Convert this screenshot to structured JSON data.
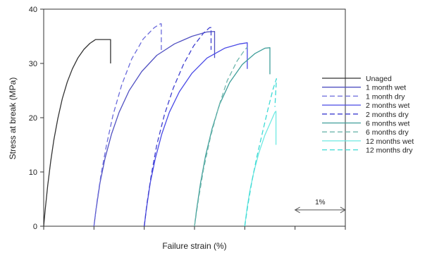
{
  "chart_data": {
    "type": "line",
    "xlabel": "Failure strain (%)",
    "ylabel": "Stress at break (MPa)",
    "ylim": [
      0,
      40
    ],
    "y_ticks": [
      0,
      10,
      20,
      30,
      40
    ],
    "x_tick_count": 7,
    "x_tick_labels": false,
    "grid": false,
    "legend_position": "right",
    "annotation": {
      "label": "1%",
      "from_x": 5.0,
      "to_x": 6.0,
      "y": 3.0
    },
    "series": [
      {
        "name": "Unaged",
        "color": "#333333",
        "dash": false,
        "points": [
          [
            0.0,
            0.0
          ],
          [
            0.03,
            3.0
          ],
          [
            0.08,
            7.5
          ],
          [
            0.14,
            12.0
          ],
          [
            0.2,
            15.8
          ],
          [
            0.28,
            19.8
          ],
          [
            0.37,
            23.5
          ],
          [
            0.47,
            26.6
          ],
          [
            0.57,
            29.0
          ],
          [
            0.68,
            31.0
          ],
          [
            0.8,
            32.6
          ],
          [
            0.92,
            33.7
          ],
          [
            1.0,
            34.2
          ],
          [
            1.03,
            34.4
          ],
          [
            1.33,
            34.4
          ],
          [
            1.33,
            30.0
          ]
        ]
      },
      {
        "name": "1 month wet",
        "color": "#5252c2",
        "dash": false,
        "points": [
          [
            1.0,
            0.0
          ],
          [
            1.04,
            3.0
          ],
          [
            1.12,
            8.0
          ],
          [
            1.22,
            12.5
          ],
          [
            1.35,
            17.0
          ],
          [
            1.5,
            21.0
          ],
          [
            1.7,
            25.0
          ],
          [
            1.95,
            28.5
          ],
          [
            2.25,
            31.5
          ],
          [
            2.6,
            33.6
          ],
          [
            2.95,
            35.0
          ],
          [
            3.25,
            35.8
          ],
          [
            3.4,
            35.9
          ],
          [
            3.4,
            31.0
          ]
        ]
      },
      {
        "name": "1 month dry",
        "color": "#6b6bdc",
        "dash": true,
        "points": [
          [
            1.0,
            0.0
          ],
          [
            1.06,
            4.5
          ],
          [
            1.14,
            9.5
          ],
          [
            1.25,
            15.0
          ],
          [
            1.38,
            20.5
          ],
          [
            1.55,
            26.0
          ],
          [
            1.75,
            30.8
          ],
          [
            1.98,
            34.5
          ],
          [
            2.2,
            36.6
          ],
          [
            2.32,
            37.3
          ],
          [
            2.34,
            37.3
          ],
          [
            2.34,
            32.0
          ]
        ]
      },
      {
        "name": "2 months wet",
        "color": "#4a4ae6",
        "dash": false,
        "points": [
          [
            2.0,
            0.0
          ],
          [
            2.04,
            3.0
          ],
          [
            2.12,
            8.0
          ],
          [
            2.22,
            12.5
          ],
          [
            2.35,
            17.0
          ],
          [
            2.5,
            21.0
          ],
          [
            2.7,
            24.8
          ],
          [
            2.95,
            28.2
          ],
          [
            3.25,
            31.0
          ],
          [
            3.6,
            32.8
          ],
          [
            3.9,
            33.6
          ],
          [
            4.05,
            33.8
          ],
          [
            4.05,
            29.0
          ]
        ]
      },
      {
        "name": "2 months dry",
        "color": "#3f3fd0",
        "dash": true,
        "points": [
          [
            2.0,
            0.0
          ],
          [
            2.06,
            4.5
          ],
          [
            2.14,
            9.5
          ],
          [
            2.25,
            15.0
          ],
          [
            2.4,
            20.5
          ],
          [
            2.58,
            25.5
          ],
          [
            2.78,
            29.8
          ],
          [
            2.98,
            33.2
          ],
          [
            3.18,
            35.6
          ],
          [
            3.3,
            36.6
          ],
          [
            3.33,
            36.6
          ],
          [
            3.33,
            32.5
          ]
        ]
      },
      {
        "name": "6 months wet",
        "color": "#3f9e9a",
        "dash": false,
        "points": [
          [
            3.0,
            0.0
          ],
          [
            3.04,
            3.0
          ],
          [
            3.12,
            8.0
          ],
          [
            3.22,
            13.0
          ],
          [
            3.35,
            18.0
          ],
          [
            3.5,
            22.5
          ],
          [
            3.7,
            26.5
          ],
          [
            3.95,
            29.8
          ],
          [
            4.2,
            31.8
          ],
          [
            4.4,
            32.8
          ],
          [
            4.5,
            32.9
          ],
          [
            4.5,
            28.0
          ]
        ]
      },
      {
        "name": "6 months dry",
        "color": "#6fb7ad",
        "dash": true,
        "points": [
          [
            3.0,
            0.0
          ],
          [
            3.08,
            5.0
          ],
          [
            3.18,
            10.5
          ],
          [
            3.32,
            16.5
          ],
          [
            3.48,
            22.0
          ],
          [
            3.65,
            26.8
          ],
          [
            3.85,
            30.5
          ],
          [
            4.0,
            32.5
          ],
          [
            4.05,
            33.0
          ]
        ]
      },
      {
        "name": "12 months wet",
        "color": "#6fe9e2",
        "dash": false,
        "points": [
          [
            4.0,
            0.0
          ],
          [
            4.04,
            3.0
          ],
          [
            4.1,
            6.5
          ],
          [
            4.18,
            10.0
          ],
          [
            4.28,
            13.5
          ],
          [
            4.4,
            16.8
          ],
          [
            4.52,
            19.3
          ],
          [
            4.6,
            21.0
          ],
          [
            4.62,
            21.2
          ],
          [
            4.62,
            15.0
          ]
        ]
      },
      {
        "name": "12 months dry",
        "color": "#3ddad5",
        "dash": true,
        "points": [
          [
            4.0,
            0.0
          ],
          [
            4.06,
            3.8
          ],
          [
            4.14,
            8.2
          ],
          [
            4.24,
            12.8
          ],
          [
            4.35,
            17.2
          ],
          [
            4.46,
            21.5
          ],
          [
            4.56,
            25.2
          ],
          [
            4.63,
            27.2
          ],
          [
            4.6,
            22.0
          ]
        ]
      }
    ]
  }
}
